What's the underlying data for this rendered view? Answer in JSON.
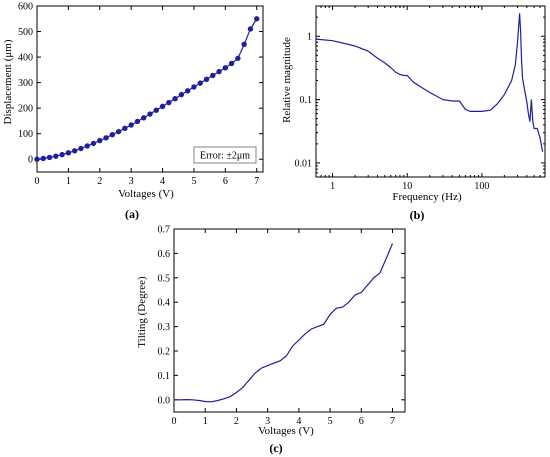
{
  "chart_data": [
    {
      "type": "line",
      "caption": "(a)",
      "xlabel": "Voltages (V)",
      "ylabel": "Displacement (μm)",
      "xlim": [
        0,
        7.2
      ],
      "ylim": [
        -50,
        600
      ],
      "xticks": [
        0,
        1,
        2,
        3,
        4,
        5,
        6,
        7
      ],
      "yticks": [
        0,
        100,
        200,
        300,
        400,
        500,
        600
      ],
      "annotation": "Error: ±2μm",
      "markers": true,
      "series": [
        {
          "x": [
            0,
            0.2,
            0.4,
            0.6,
            0.8,
            1.0,
            1.2,
            1.4,
            1.6,
            1.8,
            2.0,
            2.2,
            2.4,
            2.6,
            2.8,
            3.0,
            3.2,
            3.4,
            3.6,
            3.8,
            4.0,
            4.2,
            4.4,
            4.6,
            4.8,
            5.0,
            5.2,
            5.4,
            5.6,
            5.8,
            6.0,
            6.2,
            6.4,
            6.6,
            6.8,
            7.0
          ],
          "values": [
            0,
            3,
            7,
            12,
            18,
            25,
            33,
            42,
            52,
            62,
            73,
            84,
            96,
            108,
            121,
            134,
            148,
            162,
            177,
            192,
            207,
            222,
            237,
            253,
            268,
            283,
            298,
            313,
            328,
            343,
            358,
            375,
            395,
            450,
            510,
            550
          ]
        }
      ]
    },
    {
      "type": "line",
      "caption": "(b)",
      "xlabel": "Frequency (Hz)",
      "ylabel": "Relative magnitude",
      "xscale": "log",
      "yscale": "log",
      "xlim": [
        0.6,
        700
      ],
      "ylim": [
        0.006,
        3
      ],
      "xticks": [
        1,
        10,
        100
      ],
      "xticklabels": [
        "1",
        "10",
        "100"
      ],
      "yticks": [
        0.01,
        0.1,
        1
      ],
      "yticklabels": [
        "0.01",
        "0.1",
        "1"
      ],
      "series": [
        {
          "x": [
            0.6,
            1,
            2,
            3,
            4,
            5,
            6,
            7,
            8,
            9,
            10,
            12,
            15,
            20,
            30,
            40,
            50,
            60,
            70,
            80,
            100,
            130,
            160,
            200,
            250,
            280,
            300,
            320,
            330,
            340,
            350,
            370,
            400,
            420,
            440,
            460,
            480,
            500,
            550,
            600,
            650
          ],
          "values": [
            0.9,
            0.85,
            0.7,
            0.58,
            0.45,
            0.38,
            0.32,
            0.27,
            0.25,
            0.24,
            0.24,
            0.19,
            0.16,
            0.13,
            0.1,
            0.095,
            0.095,
            0.07,
            0.065,
            0.065,
            0.065,
            0.068,
            0.085,
            0.12,
            0.2,
            0.35,
            0.8,
            2.3,
            1.2,
            0.4,
            0.22,
            0.15,
            0.09,
            0.06,
            0.045,
            0.1,
            0.045,
            0.035,
            0.035,
            0.025,
            0.015
          ]
        }
      ]
    },
    {
      "type": "line",
      "caption": "(c)",
      "xlabel": "Voltages (V)",
      "ylabel": "Tilting (Degree)",
      "xlim": [
        0,
        7.4
      ],
      "ylim": [
        -0.05,
        0.7
      ],
      "xticks": [
        0,
        1,
        2,
        3,
        4,
        5,
        6,
        7
      ],
      "yticks": [
        0.0,
        0.1,
        0.2,
        0.3,
        0.4,
        0.5,
        0.6,
        0.7
      ],
      "yticklabels": [
        "0.0",
        "0.1",
        "0.2",
        "0.3",
        "0.4",
        "0.5",
        "0.6",
        "0.7"
      ],
      "series": [
        {
          "x": [
            0,
            0.2,
            0.4,
            0.6,
            0.8,
            1.0,
            1.2,
            1.4,
            1.6,
            1.8,
            2.0,
            2.2,
            2.4,
            2.6,
            2.8,
            3.0,
            3.2,
            3.4,
            3.6,
            3.8,
            4.0,
            4.2,
            4.4,
            4.6,
            4.8,
            5.0,
            5.2,
            5.4,
            5.6,
            5.8,
            6.0,
            6.2,
            6.4,
            6.6,
            6.8,
            7.0
          ],
          "values": [
            0.0,
            0.0,
            0.001,
            0.0,
            -0.003,
            -0.007,
            -0.008,
            -0.003,
            0.004,
            0.013,
            0.03,
            0.05,
            0.08,
            0.11,
            0.13,
            0.14,
            0.15,
            0.16,
            0.18,
            0.22,
            0.245,
            0.27,
            0.29,
            0.3,
            0.31,
            0.35,
            0.375,
            0.38,
            0.4,
            0.43,
            0.44,
            0.47,
            0.5,
            0.52,
            0.58,
            0.64
          ]
        }
      ]
    }
  ]
}
